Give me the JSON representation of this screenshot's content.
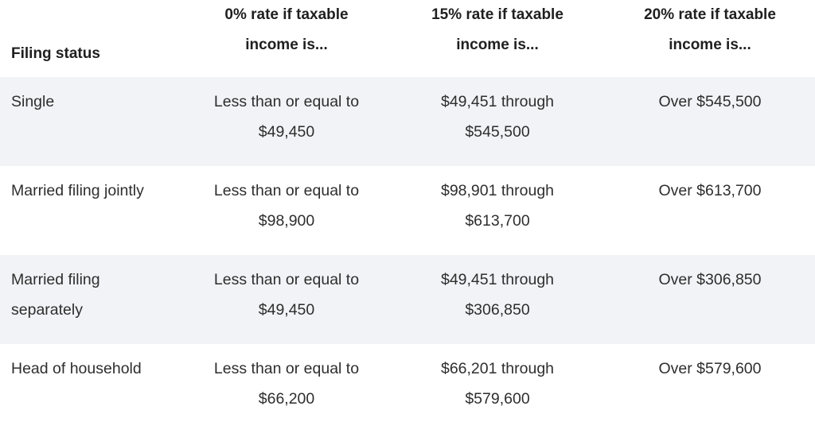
{
  "headers": {
    "status": "Filing status",
    "rate0": [
      "0% rate if taxable",
      "income is..."
    ],
    "rate15": [
      "15% rate if taxable",
      "income is..."
    ],
    "rate20": [
      "20% rate if taxable",
      "income is..."
    ]
  },
  "rows": [
    {
      "status": [
        "Single"
      ],
      "rate0": [
        "Less than or equal to",
        "$49,450"
      ],
      "rate15": [
        "$49,451 through",
        "$545,500"
      ],
      "rate20": [
        "Over $545,500"
      ]
    },
    {
      "status": [
        "Married filing jointly"
      ],
      "rate0": [
        "Less than or equal to",
        "$98,900"
      ],
      "rate15": [
        "$98,901 through",
        "$613,700"
      ],
      "rate20": [
        "Over $613,700"
      ]
    },
    {
      "status": [
        "Married filing",
        "separately"
      ],
      "rate0": [
        "Less than or equal to",
        "$49,450"
      ],
      "rate15": [
        "$49,451 through",
        "$306,850"
      ],
      "rate20": [
        "Over $306,850"
      ]
    },
    {
      "status": [
        "Head of household"
      ],
      "rate0": [
        "Less than or equal to",
        "$66,200"
      ],
      "rate15": [
        "$66,201 through",
        "$579,600"
      ],
      "rate20": [
        "Over $579,600"
      ]
    }
  ],
  "colors": {
    "shaded_row": "#f2f3f7",
    "text": "#2e2e2e"
  }
}
